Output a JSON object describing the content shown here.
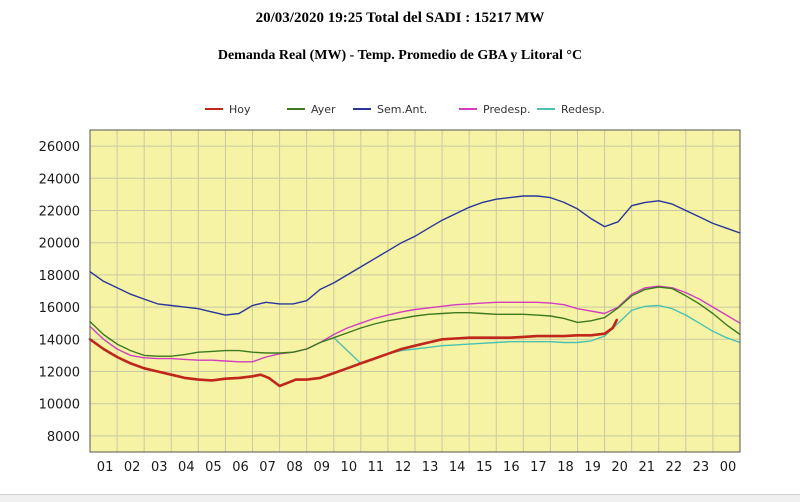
{
  "header": {
    "title": "20/03/2020 19:25 Total del SADI : 15217 MW",
    "subtitle": "Demanda Real (MW) - Temp. Promedio de GBA y Litoral °C"
  },
  "chart_data": {
    "type": "line",
    "title": "20/03/2020 19:25 Total del SADI : 15217 MW",
    "subtitle": "Demanda Real (MW) - Temp. Promedio de GBA y Litoral °C",
    "xlabel": "",
    "ylabel": "",
    "xlim": [
      0,
      24
    ],
    "ylim": [
      7000,
      27000
    ],
    "yticks": [
      8000,
      10000,
      12000,
      14000,
      16000,
      18000,
      20000,
      22000,
      24000,
      26000
    ],
    "xtick_labels": [
      "01",
      "02",
      "03",
      "04",
      "05",
      "06",
      "07",
      "08",
      "09",
      "10",
      "11",
      "12",
      "13",
      "14",
      "15",
      "16",
      "17",
      "18",
      "19",
      "20",
      "21",
      "22",
      "23",
      "00"
    ],
    "grid": true,
    "legend_position": "top",
    "background_color": "#f6f3a5",
    "series": [
      {
        "name": "Hoy",
        "color": "#c0261a",
        "x": [
          0,
          0.5,
          1,
          1.5,
          2,
          2.5,
          3,
          3.5,
          4,
          4.5,
          5,
          5.5,
          6,
          6.3,
          6.6,
          7,
          7.3,
          7.6,
          8,
          8.5,
          9,
          9.5,
          10,
          10.5,
          11,
          11.5,
          12,
          12.5,
          13,
          13.5,
          14,
          14.5,
          15,
          15.5,
          16,
          16.5,
          17,
          17.5,
          18,
          18.5,
          19,
          19.3,
          19.45
        ],
        "y": [
          14000,
          13400,
          12900,
          12500,
          12200,
          12000,
          11800,
          11600,
          11500,
          11450,
          11550,
          11600,
          11700,
          11800,
          11600,
          11100,
          11300,
          11500,
          11500,
          11600,
          11900,
          12200,
          12500,
          12800,
          13100,
          13400,
          13600,
          13800,
          14000,
          14050,
          14100,
          14100,
          14100,
          14100,
          14150,
          14200,
          14200,
          14200,
          14250,
          14250,
          14350,
          14700,
          15200
        ]
      },
      {
        "name": "Ayer",
        "color": "#3d7a1e",
        "x": [
          0,
          0.5,
          1,
          1.5,
          2,
          2.5,
          3,
          3.5,
          4,
          4.5,
          5,
          5.5,
          6,
          6.5,
          7,
          7.5,
          8,
          8.5,
          9,
          9.5,
          10,
          10.5,
          11,
          11.5,
          12,
          12.5,
          13,
          13.5,
          14,
          14.5,
          15,
          15.5,
          16,
          16.5,
          17,
          17.5,
          18,
          18.5,
          19,
          19.5,
          20,
          20.5,
          21,
          21.5,
          22,
          22.5,
          23,
          23.5,
          24
        ],
        "y": [
          15100,
          14300,
          13700,
          13300,
          13000,
          12950,
          12950,
          13050,
          13200,
          13250,
          13300,
          13300,
          13200,
          13150,
          13150,
          13200,
          13400,
          13800,
          14100,
          14400,
          14700,
          14950,
          15150,
          15300,
          15450,
          15550,
          15600,
          15650,
          15650,
          15600,
          15550,
          15550,
          15550,
          15500,
          15450,
          15300,
          15050,
          15150,
          15350,
          15950,
          16700,
          17100,
          17250,
          17150,
          16700,
          16200,
          15600,
          14900,
          14300
        ]
      },
      {
        "name": "Sem.Ant.",
        "color": "#29369a",
        "x": [
          0,
          0.5,
          1,
          1.5,
          2,
          2.5,
          3,
          3.5,
          4,
          4.5,
          5,
          5.5,
          6,
          6.5,
          7,
          7.5,
          8,
          8.5,
          9,
          9.5,
          10,
          10.5,
          11,
          11.5,
          12,
          12.5,
          13,
          13.5,
          14,
          14.5,
          15,
          15.5,
          16,
          16.5,
          17,
          17.5,
          18,
          18.5,
          19,
          19.5,
          20,
          20.5,
          21,
          21.5,
          22,
          22.5,
          23,
          23.5,
          24
        ],
        "y": [
          18200,
          17600,
          17200,
          16800,
          16500,
          16200,
          16100,
          16000,
          15900,
          15700,
          15500,
          15600,
          16100,
          16300,
          16200,
          16200,
          16400,
          17100,
          17500,
          18000,
          18500,
          19000,
          19500,
          20000,
          20400,
          20900,
          21400,
          21800,
          22200,
          22500,
          22700,
          22800,
          22900,
          22900,
          22800,
          22500,
          22100,
          21500,
          21000,
          21300,
          22300,
          22500,
          22600,
          22400,
          22000,
          21600,
          21200,
          20900,
          20600
        ]
      },
      {
        "name": "Predesp.",
        "color": "#d13fbf",
        "x": [
          0,
          0.5,
          1,
          1.5,
          2,
          2.5,
          3,
          3.5,
          4,
          4.5,
          5,
          5.5,
          6,
          6.5,
          7,
          7.5,
          8,
          8.5,
          9,
          9.5,
          10,
          10.5,
          11,
          11.5,
          12,
          12.5,
          13,
          13.5,
          14,
          14.5,
          15,
          15.5,
          16,
          16.5,
          17,
          17.5,
          18,
          18.5,
          19,
          19.5,
          20,
          20.5,
          21,
          21.5,
          22,
          22.5,
          23,
          23.5,
          24
        ],
        "y": [
          14800,
          14000,
          13400,
          13000,
          12850,
          12800,
          12800,
          12750,
          12700,
          12700,
          12650,
          12600,
          12600,
          12900,
          13100,
          13200,
          13400,
          13800,
          14300,
          14700,
          15000,
          15300,
          15500,
          15700,
          15850,
          15950,
          16050,
          16150,
          16200,
          16250,
          16300,
          16300,
          16300,
          16300,
          16250,
          16150,
          15900,
          15750,
          15600,
          16000,
          16800,
          17200,
          17300,
          17200,
          16900,
          16500,
          16000,
          15500,
          15000
        ]
      },
      {
        "name": "Redesp.",
        "color": "#4cc1b0",
        "x": [
          9,
          9.5,
          10,
          10.5,
          11,
          11.5,
          12,
          12.5,
          13,
          13.5,
          14,
          14.5,
          15,
          15.5,
          16,
          16.5,
          17,
          17.5,
          18,
          18.5,
          19,
          19.5,
          20,
          20.5,
          21,
          21.5,
          22,
          22.5,
          23,
          23.5,
          24
        ],
        "y": [
          14100,
          13300,
          12500,
          12800,
          13100,
          13300,
          13400,
          13500,
          13600,
          13650,
          13700,
          13750,
          13800,
          13850,
          13850,
          13850,
          13850,
          13800,
          13800,
          13900,
          14200,
          15000,
          15800,
          16050,
          16100,
          15900,
          15500,
          15000,
          14500,
          14100,
          13800
        ]
      }
    ]
  }
}
